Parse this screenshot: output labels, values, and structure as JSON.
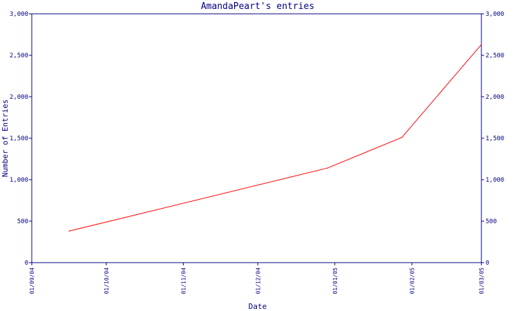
{
  "chart_data": {
    "type": "line",
    "title": "AmandaPeart's entries",
    "xlabel": "Date",
    "ylabel": "Number of Entries",
    "ylim": [
      0,
      3000
    ],
    "xlim": [
      "2004-09-01",
      "2005-03-01"
    ],
    "yticks": [
      {
        "value": 0,
        "label": "0"
      },
      {
        "value": 500,
        "label": "500"
      },
      {
        "value": 1000,
        "label": "1,000"
      },
      {
        "value": 1500,
        "label": "1,500"
      },
      {
        "value": 2000,
        "label": "2,000"
      },
      {
        "value": 2500,
        "label": "2,500"
      },
      {
        "value": 3000,
        "label": "3,000"
      }
    ],
    "xticks": [
      {
        "date": "2004-09-01",
        "label": "01/09/04"
      },
      {
        "date": "2004-10-01",
        "label": "01/10/04"
      },
      {
        "date": "2004-11-01",
        "label": "01/11/04"
      },
      {
        "date": "2004-12-01",
        "label": "01/12/04"
      },
      {
        "date": "2005-01-01",
        "label": "01/01/05"
      },
      {
        "date": "2005-02-01",
        "label": "01/02/05"
      },
      {
        "date": "2005-03-01",
        "label": "01/03/05"
      }
    ],
    "series": [
      {
        "color": "#ff0000",
        "points": [
          {
            "x": "2004-09-16",
            "y": 380
          },
          {
            "x": "2004-12-29",
            "y": 1140
          },
          {
            "x": "2005-01-28",
            "y": 1510
          },
          {
            "x": "2005-03-01",
            "y": 2630
          }
        ]
      }
    ],
    "grid": false,
    "axis_color": "#000080"
  }
}
